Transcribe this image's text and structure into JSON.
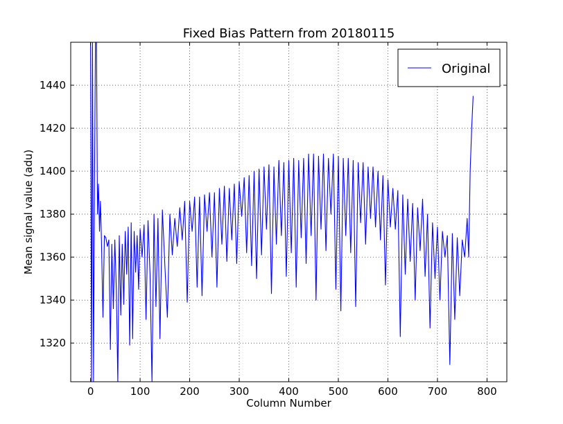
{
  "chart_data": {
    "type": "line",
    "title": "Fixed Bias Pattern from 20180115",
    "xlabel": "Column Number",
    "ylabel": "Mean signal value (adu)",
    "xlim": [
      -40,
      840
    ],
    "ylim": [
      1302,
      1460
    ],
    "xticks": [
      0,
      100,
      200,
      300,
      400,
      500,
      600,
      700,
      800
    ],
    "yticks": [
      1320,
      1340,
      1360,
      1380,
      1400,
      1420,
      1440
    ],
    "grid": true,
    "legend_position": "top-right",
    "series": [
      {
        "name": "Original",
        "color": "#0000ff",
        "x": [
          0,
          2,
          4,
          6,
          8,
          10,
          12,
          14,
          16,
          18,
          20,
          22,
          25,
          28,
          31,
          34,
          37,
          40,
          43,
          46,
          49,
          52,
          55,
          58,
          61,
          64,
          67,
          70,
          73,
          76,
          79,
          82,
          85,
          88,
          91,
          94,
          97,
          100,
          104,
          108,
          112,
          116,
          120,
          124,
          128,
          132,
          136,
          140,
          145,
          150,
          155,
          160,
          165,
          170,
          175,
          180,
          185,
          190,
          195,
          200,
          205,
          210,
          215,
          220,
          225,
          230,
          235,
          240,
          245,
          250,
          255,
          260,
          265,
          270,
          275,
          280,
          285,
          290,
          295,
          300,
          305,
          310,
          315,
          320,
          325,
          330,
          335,
          340,
          345,
          350,
          355,
          360,
          365,
          370,
          375,
          380,
          385,
          390,
          395,
          400,
          405,
          410,
          415,
          420,
          425,
          430,
          435,
          440,
          445,
          450,
          455,
          460,
          465,
          470,
          475,
          480,
          485,
          490,
          495,
          500,
          505,
          510,
          515,
          520,
          525,
          530,
          535,
          540,
          545,
          550,
          555,
          560,
          565,
          570,
          575,
          580,
          585,
          590,
          595,
          600,
          605,
          610,
          615,
          620,
          625,
          630,
          635,
          640,
          645,
          650,
          655,
          660,
          665,
          670,
          675,
          680,
          685,
          690,
          695,
          700,
          705,
          710,
          715,
          720,
          725,
          730,
          735,
          740,
          745,
          750,
          755,
          760,
          763,
          766,
          769,
          772
        ],
        "y": [
          1460,
          1302,
          1460,
          1302,
          1395,
          1460,
          1460,
          1380,
          1394,
          1372,
          1386,
          1368,
          1332,
          1370,
          1369,
          1365,
          1368,
          1317,
          1366,
          1336,
          1368,
          1345,
          1302,
          1370,
          1333,
          1366,
          1338,
          1372,
          1352,
          1374,
          1319,
          1376,
          1322,
          1372,
          1353,
          1370,
          1345,
          1373,
          1360,
          1375,
          1331,
          1377,
          1352,
          1302,
          1380,
          1337,
          1378,
          1322,
          1382,
          1356,
          1332,
          1380,
          1361,
          1378,
          1365,
          1383,
          1368,
          1386,
          1339,
          1386,
          1372,
          1388,
          1346,
          1388,
          1342,
          1389,
          1372,
          1390,
          1360,
          1390,
          1346,
          1392,
          1366,
          1393,
          1358,
          1392,
          1368,
          1394,
          1357,
          1395,
          1379,
          1397,
          1362,
          1398,
          1356,
          1400,
          1350,
          1401,
          1361,
          1402,
          1373,
          1403,
          1343,
          1402,
          1366,
          1405,
          1370,
          1404,
          1351,
          1405,
          1362,
          1406,
          1346,
          1405,
          1369,
          1406,
          1357,
          1408,
          1370,
          1408,
          1340,
          1407,
          1373,
          1408,
          1363,
          1406,
          1380,
          1408,
          1345,
          1407,
          1335,
          1406,
          1370,
          1406,
          1362,
          1405,
          1337,
          1404,
          1376,
          1404,
          1366,
          1402,
          1378,
          1402,
          1374,
          1400,
          1368,
          1398,
          1347,
          1396,
          1374,
          1392,
          1373,
          1391,
          1323,
          1389,
          1352,
          1387,
          1358,
          1385,
          1340,
          1383,
          1363,
          1387,
          1351,
          1380,
          1327,
          1376,
          1350,
          1374,
          1340,
          1372,
          1360,
          1370,
          1310,
          1371,
          1331,
          1369,
          1342,
          1368,
          1360,
          1378,
          1360,
          1400,
          1420,
          1435
        ]
      }
    ]
  }
}
